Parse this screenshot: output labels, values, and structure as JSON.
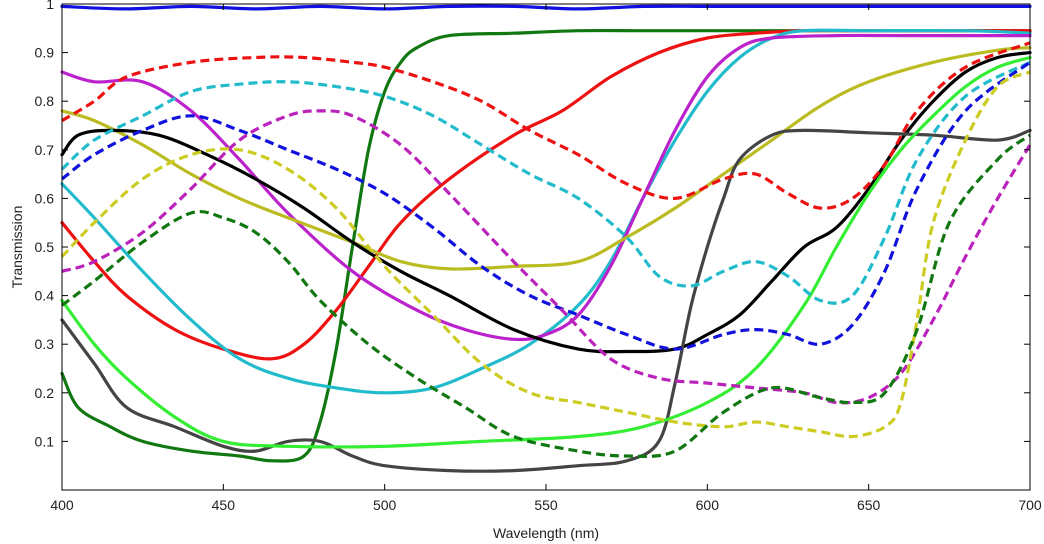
{
  "chart_data": {
    "type": "line",
    "title": "",
    "xlabel": "Wavelength (nm)",
    "ylabel": "Transmission",
    "xlim": [
      400,
      700
    ],
    "ylim": [
      0,
      1
    ],
    "grid": false,
    "xticks": [
      400,
      450,
      500,
      550,
      600,
      650,
      700
    ],
    "yticks": [
      0.1,
      0.2,
      0.3,
      0.4,
      0.5,
      0.6,
      0.7,
      0.8,
      0.9,
      1
    ],
    "xtick_labels": [
      "400",
      "450",
      "500",
      "550",
      "600",
      "650",
      "700"
    ],
    "ytick_labels": [
      "0.1",
      "0.2",
      "0.3",
      "0.4",
      "0.5",
      "0.6",
      "0.7",
      "0.8",
      "0.9",
      "1"
    ],
    "series": [
      {
        "color": "#1010e0",
        "style": "solid",
        "x": [
          400,
          420,
          440,
          460,
          480,
          500,
          520,
          540,
          560,
          580,
          600,
          620,
          640,
          660,
          680,
          700
        ],
        "y": [
          0.995,
          0.99,
          0.995,
          0.99,
          0.995,
          0.99,
          0.995,
          0.995,
          0.99,
          0.995,
          0.995,
          0.995,
          0.995,
          0.995,
          0.995,
          0.995
        ]
      },
      {
        "color": "#117711",
        "style": "solid",
        "x": [
          400,
          405,
          415,
          425,
          440,
          455,
          465,
          475,
          480,
          485,
          490,
          495,
          500,
          505,
          510,
          520,
          540,
          560,
          580,
          600,
          630,
          660,
          700
        ],
        "y": [
          0.24,
          0.17,
          0.13,
          0.1,
          0.08,
          0.07,
          0.06,
          0.07,
          0.14,
          0.29,
          0.5,
          0.7,
          0.82,
          0.88,
          0.91,
          0.935,
          0.94,
          0.945,
          0.945,
          0.945,
          0.945,
          0.945,
          0.945
        ]
      },
      {
        "color": "#ee1111",
        "style": "solid",
        "x": [
          400,
          410,
          420,
          435,
          450,
          465,
          475,
          485,
          495,
          505,
          520,
          540,
          555,
          570,
          585,
          600,
          615,
          630,
          650,
          700
        ],
        "y": [
          0.55,
          0.47,
          0.4,
          0.33,
          0.29,
          0.27,
          0.3,
          0.37,
          0.46,
          0.55,
          0.64,
          0.73,
          0.78,
          0.85,
          0.9,
          0.93,
          0.94,
          0.945,
          0.945,
          0.945
        ]
      },
      {
        "color": "#22bbcc",
        "style": "solid",
        "x": [
          400,
          410,
          425,
          440,
          455,
          470,
          485,
          500,
          515,
          530,
          545,
          560,
          570,
          580,
          590,
          600,
          610,
          620,
          630,
          650,
          680,
          700
        ],
        "y": [
          0.63,
          0.56,
          0.45,
          0.35,
          0.27,
          0.23,
          0.21,
          0.2,
          0.21,
          0.25,
          0.3,
          0.38,
          0.47,
          0.6,
          0.72,
          0.82,
          0.89,
          0.93,
          0.945,
          0.945,
          0.945,
          0.94
        ]
      },
      {
        "color": "#bb22cc",
        "style": "solid",
        "x": [
          400,
          410,
          425,
          440,
          455,
          470,
          490,
          510,
          525,
          540,
          550,
          560,
          570,
          580,
          590,
          600,
          610,
          620,
          640,
          660,
          700
        ],
        "y": [
          0.86,
          0.84,
          0.84,
          0.78,
          0.68,
          0.57,
          0.45,
          0.37,
          0.33,
          0.31,
          0.32,
          0.36,
          0.46,
          0.6,
          0.74,
          0.85,
          0.91,
          0.93,
          0.935,
          0.935,
          0.935
        ]
      },
      {
        "color": "#bbbb22",
        "style": "solid",
        "x": [
          400,
          410,
          425,
          440,
          455,
          470,
          490,
          505,
          520,
          540,
          560,
          575,
          590,
          605,
          620,
          635,
          650,
          670,
          690,
          700
        ],
        "y": [
          0.78,
          0.76,
          0.71,
          0.65,
          0.6,
          0.56,
          0.51,
          0.47,
          0.455,
          0.46,
          0.47,
          0.52,
          0.58,
          0.65,
          0.72,
          0.79,
          0.84,
          0.88,
          0.905,
          0.91
        ]
      },
      {
        "color": "#000000",
        "style": "solid",
        "x": [
          400,
          405,
          415,
          430,
          445,
          460,
          475,
          490,
          505,
          520,
          540,
          560,
          575,
          590,
          600,
          610,
          620,
          630,
          640,
          650,
          660,
          670,
          680,
          690,
          700
        ],
        "y": [
          0.69,
          0.73,
          0.74,
          0.73,
          0.69,
          0.64,
          0.58,
          0.51,
          0.45,
          0.4,
          0.33,
          0.29,
          0.285,
          0.29,
          0.32,
          0.36,
          0.43,
          0.5,
          0.54,
          0.62,
          0.72,
          0.8,
          0.86,
          0.89,
          0.9
        ]
      },
      {
        "color": "#444444",
        "style": "solid",
        "x": [
          400,
          410,
          420,
          435,
          450,
          460,
          470,
          480,
          490,
          500,
          520,
          540,
          560,
          575,
          585,
          590,
          595,
          600,
          605,
          610,
          620,
          630,
          650,
          670,
          690,
          700
        ],
        "y": [
          0.35,
          0.26,
          0.17,
          0.13,
          0.09,
          0.08,
          0.1,
          0.1,
          0.07,
          0.05,
          0.04,
          0.04,
          0.05,
          0.06,
          0.1,
          0.22,
          0.38,
          0.5,
          0.6,
          0.68,
          0.73,
          0.74,
          0.735,
          0.73,
          0.72,
          0.74
        ]
      },
      {
        "color": "#33ee33",
        "style": "solid",
        "x": [
          400,
          410,
          420,
          435,
          450,
          470,
          500,
          530,
          560,
          580,
          600,
          615,
          630,
          640,
          650,
          660,
          670,
          680,
          690,
          700
        ],
        "y": [
          0.39,
          0.3,
          0.23,
          0.15,
          0.1,
          0.09,
          0.09,
          0.1,
          0.11,
          0.13,
          0.18,
          0.25,
          0.38,
          0.5,
          0.61,
          0.7,
          0.77,
          0.83,
          0.87,
          0.89
        ]
      },
      {
        "color": "#ee1111",
        "style": "dashed",
        "x": [
          400,
          410,
          420,
          440,
          460,
          475,
          490,
          500,
          515,
          530,
          545,
          560,
          575,
          590,
          605,
          615,
          625,
          635,
          645,
          655,
          665,
          680,
          700
        ],
        "y": [
          0.76,
          0.8,
          0.85,
          0.88,
          0.89,
          0.89,
          0.88,
          0.87,
          0.84,
          0.8,
          0.74,
          0.69,
          0.63,
          0.6,
          0.64,
          0.65,
          0.61,
          0.58,
          0.6,
          0.67,
          0.78,
          0.87,
          0.92
        ]
      },
      {
        "color": "#22bbcc",
        "style": "dashed",
        "x": [
          400,
          410,
          425,
          440,
          455,
          470,
          485,
          500,
          515,
          530,
          545,
          560,
          575,
          585,
          595,
          605,
          615,
          625,
          635,
          645,
          655,
          665,
          680,
          700
        ],
        "y": [
          0.66,
          0.72,
          0.77,
          0.82,
          0.835,
          0.84,
          0.83,
          0.81,
          0.77,
          0.71,
          0.65,
          0.6,
          0.52,
          0.44,
          0.42,
          0.45,
          0.47,
          0.44,
          0.39,
          0.4,
          0.52,
          0.68,
          0.81,
          0.88
        ]
      },
      {
        "color": "#1111dd",
        "style": "dashed",
        "x": [
          400,
          410,
          425,
          440,
          455,
          470,
          485,
          500,
          515,
          530,
          545,
          560,
          575,
          590,
          605,
          615,
          625,
          635,
          645,
          655,
          665,
          680,
          700
        ],
        "y": [
          0.64,
          0.69,
          0.74,
          0.77,
          0.74,
          0.7,
          0.66,
          0.61,
          0.54,
          0.46,
          0.4,
          0.36,
          0.32,
          0.29,
          0.32,
          0.33,
          0.32,
          0.3,
          0.34,
          0.45,
          0.62,
          0.78,
          0.88
        ]
      },
      {
        "color": "#bb22bb",
        "style": "dashed",
        "x": [
          400,
          410,
          425,
          440,
          455,
          470,
          480,
          490,
          505,
          520,
          540,
          555,
          570,
          585,
          600,
          615,
          630,
          640,
          650,
          660,
          670,
          680,
          690,
          700
        ],
        "y": [
          0.45,
          0.47,
          0.53,
          0.62,
          0.72,
          0.77,
          0.78,
          0.77,
          0.71,
          0.61,
          0.47,
          0.37,
          0.27,
          0.23,
          0.22,
          0.21,
          0.2,
          0.18,
          0.19,
          0.24,
          0.35,
          0.48,
          0.6,
          0.71
        ]
      },
      {
        "color": "#cccc22",
        "style": "dashed",
        "x": [
          400,
          410,
          425,
          440,
          455,
          470,
          485,
          500,
          515,
          530,
          545,
          560,
          575,
          590,
          605,
          615,
          625,
          635,
          645,
          655,
          660,
          665,
          670,
          680,
          690,
          700
        ],
        "y": [
          0.48,
          0.55,
          0.64,
          0.69,
          0.7,
          0.66,
          0.58,
          0.46,
          0.36,
          0.26,
          0.2,
          0.18,
          0.16,
          0.14,
          0.13,
          0.14,
          0.13,
          0.12,
          0.11,
          0.13,
          0.18,
          0.35,
          0.55,
          0.72,
          0.83,
          0.86
        ]
      },
      {
        "color": "#117711",
        "style": "dashed",
        "x": [
          400,
          410,
          425,
          440,
          450,
          460,
          470,
          480,
          495,
          510,
          525,
          540,
          560,
          575,
          590,
          605,
          620,
          635,
          645,
          655,
          665,
          675,
          690,
          700
        ],
        "y": [
          0.38,
          0.43,
          0.51,
          0.57,
          0.56,
          0.53,
          0.47,
          0.39,
          0.3,
          0.23,
          0.17,
          0.11,
          0.08,
          0.07,
          0.08,
          0.16,
          0.21,
          0.19,
          0.18,
          0.2,
          0.33,
          0.55,
          0.68,
          0.73
        ]
      }
    ]
  }
}
